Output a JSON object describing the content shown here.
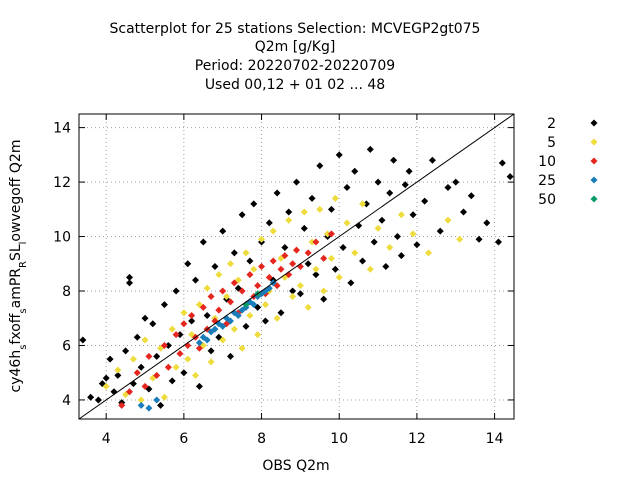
{
  "chart_data": {
    "type": "scatter",
    "title_lines": [
      "Scatterplot for   25 stations Selection: MCVEGP2gt075",
      "Q2m [g/Kg]",
      "Period: 20220702-20220709",
      "Used  00,12  + 01 02 ... 48"
    ],
    "xlabel": "OBS Q2m",
    "ylabel": "cy46h_s fxoff_s amPR_R SL_l owvegoff Q2m",
    "ylabel_parts": [
      {
        "t": "cy46h",
        "sub": false
      },
      {
        "t": "s",
        "sub": true
      },
      {
        "t": "fxoff",
        "sub": false
      },
      {
        "t": "s",
        "sub": true
      },
      {
        "t": "amPR",
        "sub": false
      },
      {
        "t": "R",
        "sub": true
      },
      {
        "t": "SL",
        "sub": false
      },
      {
        "t": "l",
        "sub": true
      },
      {
        "t": "owvegoff Q2m",
        "sub": false
      }
    ],
    "xlim": [
      3.3,
      14.5
    ],
    "ylim": [
      3.3,
      14.5
    ],
    "xticks": [
      "4",
      "6",
      "8",
      "10",
      "12",
      "14"
    ],
    "yticks": [
      "4",
      "6",
      "8",
      "10",
      "12",
      "14"
    ],
    "grid": true,
    "diagonal_line": true,
    "legend_position": "right",
    "marker": "diamond",
    "series": [
      {
        "name": "2",
        "color": "#000000",
        "points": [
          [
            3.4,
            6.2
          ],
          [
            3.6,
            4.1
          ],
          [
            3.8,
            4.0
          ],
          [
            3.9,
            4.6
          ],
          [
            4.0,
            4.8
          ],
          [
            4.1,
            5.5
          ],
          [
            4.2,
            4.3
          ],
          [
            4.3,
            4.9
          ],
          [
            4.4,
            3.9
          ],
          [
            4.5,
            5.8
          ],
          [
            4.6,
            8.5
          ],
          [
            4.6,
            8.3
          ],
          [
            4.7,
            4.6
          ],
          [
            4.8,
            6.3
          ],
          [
            4.9,
            5.2
          ],
          [
            5.0,
            7.0
          ],
          [
            5.1,
            4.4
          ],
          [
            5.2,
            6.8
          ],
          [
            5.3,
            5.6
          ],
          [
            5.4,
            3.8
          ],
          [
            5.5,
            7.5
          ],
          [
            5.6,
            6.0
          ],
          [
            5.7,
            4.7
          ],
          [
            5.8,
            8.0
          ],
          [
            5.9,
            6.4
          ],
          [
            6.0,
            5.0
          ],
          [
            6.1,
            9.0
          ],
          [
            6.2,
            6.9
          ],
          [
            6.3,
            8.4
          ],
          [
            6.4,
            4.5
          ],
          [
            6.5,
            9.8
          ],
          [
            6.6,
            7.1
          ],
          [
            6.7,
            5.8
          ],
          [
            6.8,
            8.9
          ],
          [
            6.9,
            6.3
          ],
          [
            7.0,
            10.2
          ],
          [
            7.1,
            7.7
          ],
          [
            7.2,
            5.6
          ],
          [
            7.3,
            9.4
          ],
          [
            7.4,
            8.1
          ],
          [
            7.5,
            10.8
          ],
          [
            7.6,
            6.7
          ],
          [
            7.7,
            9.1
          ],
          [
            7.8,
            11.2
          ],
          [
            7.9,
            7.4
          ],
          [
            8.0,
            9.8
          ],
          [
            8.1,
            6.9
          ],
          [
            8.2,
            10.5
          ],
          [
            8.3,
            8.4
          ],
          [
            8.4,
            11.6
          ],
          [
            8.5,
            7.2
          ],
          [
            8.6,
            9.6
          ],
          [
            8.7,
            10.9
          ],
          [
            8.8,
            8.0
          ],
          [
            8.9,
            12.0
          ],
          [
            9.0,
            7.9
          ],
          [
            9.1,
            10.3
          ],
          [
            9.2,
            9.0
          ],
          [
            9.3,
            11.4
          ],
          [
            9.4,
            8.6
          ],
          [
            9.5,
            12.6
          ],
          [
            9.6,
            7.7
          ],
          [
            9.7,
            10.0
          ],
          [
            9.8,
            11.0
          ],
          [
            9.9,
            8.8
          ],
          [
            10.0,
            13.0
          ],
          [
            10.1,
            9.6
          ],
          [
            10.2,
            11.8
          ],
          [
            10.3,
            8.3
          ],
          [
            10.4,
            12.4
          ],
          [
            10.5,
            10.4
          ],
          [
            10.6,
            9.1
          ],
          [
            10.7,
            11.2
          ],
          [
            10.8,
            13.2
          ],
          [
            10.9,
            9.8
          ],
          [
            11.0,
            12.0
          ],
          [
            11.1,
            10.6
          ],
          [
            11.2,
            8.9
          ],
          [
            11.3,
            11.6
          ],
          [
            11.4,
            12.8
          ],
          [
            11.5,
            10.0
          ],
          [
            11.6,
            9.3
          ],
          [
            11.7,
            11.9
          ],
          [
            11.8,
            12.4
          ],
          [
            11.9,
            10.8
          ],
          [
            12.0,
            9.7
          ],
          [
            12.2,
            11.3
          ],
          [
            12.4,
            12.8
          ],
          [
            12.6,
            10.2
          ],
          [
            12.8,
            11.8
          ],
          [
            13.0,
            12.0
          ],
          [
            13.2,
            10.9
          ],
          [
            13.4,
            11.5
          ],
          [
            13.6,
            9.9
          ],
          [
            13.8,
            10.5
          ],
          [
            14.1,
            9.8
          ],
          [
            14.2,
            12.7
          ],
          [
            14.4,
            12.2
          ]
        ]
      },
      {
        "name": "5",
        "color": "#eedc3c",
        "points": [
          [
            4.0,
            4.5
          ],
          [
            4.3,
            5.1
          ],
          [
            4.5,
            4.2
          ],
          [
            4.7,
            5.5
          ],
          [
            4.9,
            4.0
          ],
          [
            5.0,
            6.2
          ],
          [
            5.2,
            4.8
          ],
          [
            5.4,
            5.9
          ],
          [
            5.5,
            4.1
          ],
          [
            5.7,
            6.6
          ],
          [
            5.8,
            5.2
          ],
          [
            6.0,
            7.2
          ],
          [
            6.1,
            5.5
          ],
          [
            6.2,
            6.4
          ],
          [
            6.3,
            4.9
          ],
          [
            6.4,
            7.5
          ],
          [
            6.5,
            6.0
          ],
          [
            6.6,
            8.1
          ],
          [
            6.7,
            5.4
          ],
          [
            6.8,
            7.0
          ],
          [
            6.9,
            8.6
          ],
          [
            7.0,
            6.2
          ],
          [
            7.1,
            7.8
          ],
          [
            7.2,
            9.0
          ],
          [
            7.3,
            6.6
          ],
          [
            7.4,
            8.4
          ],
          [
            7.5,
            5.9
          ],
          [
            7.6,
            9.4
          ],
          [
            7.7,
            7.1
          ],
          [
            7.8,
            8.8
          ],
          [
            7.9,
            6.4
          ],
          [
            8.0,
            9.9
          ],
          [
            8.1,
            7.5
          ],
          [
            8.2,
            8.0
          ],
          [
            8.3,
            10.2
          ],
          [
            8.4,
            7.0
          ],
          [
            8.5,
            9.2
          ],
          [
            8.6,
            8.5
          ],
          [
            8.7,
            10.6
          ],
          [
            8.8,
            7.8
          ],
          [
            8.9,
            9.5
          ],
          [
            9.0,
            8.2
          ],
          [
            9.1,
            10.9
          ],
          [
            9.2,
            7.4
          ],
          [
            9.3,
            9.8
          ],
          [
            9.4,
            8.8
          ],
          [
            9.5,
            11.0
          ],
          [
            9.6,
            8.0
          ],
          [
            9.7,
            10.1
          ],
          [
            9.8,
            9.2
          ],
          [
            9.9,
            11.4
          ],
          [
            10.0,
            8.5
          ],
          [
            10.2,
            10.5
          ],
          [
            10.4,
            9.4
          ],
          [
            10.6,
            11.2
          ],
          [
            10.8,
            8.8
          ],
          [
            11.0,
            10.3
          ],
          [
            11.3,
            9.6
          ],
          [
            11.6,
            10.8
          ],
          [
            11.9,
            10.1
          ],
          [
            12.3,
            9.4
          ],
          [
            12.8,
            10.6
          ],
          [
            13.1,
            9.9
          ]
        ]
      },
      {
        "name": "10",
        "color": "#e5261e",
        "points": [
          [
            4.4,
            3.8
          ],
          [
            4.6,
            4.3
          ],
          [
            4.8,
            5.0
          ],
          [
            5.0,
            4.5
          ],
          [
            5.1,
            5.6
          ],
          [
            5.3,
            4.9
          ],
          [
            5.5,
            6.0
          ],
          [
            5.6,
            5.2
          ],
          [
            5.8,
            6.4
          ],
          [
            5.9,
            5.7
          ],
          [
            6.0,
            6.8
          ],
          [
            6.1,
            6.0
          ],
          [
            6.2,
            7.1
          ],
          [
            6.3,
            6.3
          ],
          [
            6.4,
            5.9
          ],
          [
            6.5,
            7.4
          ],
          [
            6.6,
            6.6
          ],
          [
            6.7,
            7.8
          ],
          [
            6.8,
            6.9
          ],
          [
            6.9,
            7.3
          ],
          [
            7.0,
            8.0
          ],
          [
            7.1,
            6.8
          ],
          [
            7.2,
            7.6
          ],
          [
            7.3,
            8.3
          ],
          [
            7.4,
            7.2
          ],
          [
            7.5,
            8.0
          ],
          [
            7.6,
            7.5
          ],
          [
            7.7,
            8.6
          ],
          [
            7.8,
            7.8
          ],
          [
            7.9,
            8.2
          ],
          [
            8.0,
            8.9
          ],
          [
            8.1,
            7.9
          ],
          [
            8.2,
            8.5
          ],
          [
            8.3,
            9.1
          ],
          [
            8.4,
            8.2
          ],
          [
            8.5,
            8.8
          ],
          [
            8.6,
            9.3
          ],
          [
            8.7,
            8.6
          ],
          [
            8.8,
            9.0
          ],
          [
            8.9,
            9.5
          ],
          [
            9.0,
            8.9
          ],
          [
            9.2,
            9.4
          ],
          [
            9.4,
            9.8
          ],
          [
            9.6,
            9.2
          ],
          [
            9.8,
            10.1
          ]
        ]
      },
      {
        "name": "25",
        "color": "#1a7cb8",
        "points": [
          [
            4.9,
            3.8
          ],
          [
            5.1,
            3.7
          ],
          [
            5.3,
            4.0
          ],
          [
            6.4,
            6.1
          ],
          [
            6.5,
            6.3
          ],
          [
            6.6,
            6.2
          ],
          [
            6.7,
            6.5
          ],
          [
            6.8,
            6.6
          ],
          [
            6.9,
            6.8
          ],
          [
            7.0,
            6.7
          ],
          [
            7.1,
            7.0
          ],
          [
            7.2,
            6.9
          ],
          [
            7.3,
            7.2
          ],
          [
            7.4,
            7.1
          ],
          [
            7.5,
            7.3
          ],
          [
            7.6,
            7.4
          ],
          [
            7.7,
            7.6
          ],
          [
            7.8,
            7.5
          ],
          [
            7.9,
            7.8
          ],
          [
            8.0,
            7.9
          ],
          [
            8.1,
            8.0
          ],
          [
            8.2,
            8.1
          ],
          [
            8.3,
            8.3
          ]
        ]
      },
      {
        "name": "50",
        "color": "#0a9a6a",
        "points": [
          [
            7.6,
            7.5
          ],
          [
            7.9,
            7.9
          ]
        ]
      }
    ]
  }
}
